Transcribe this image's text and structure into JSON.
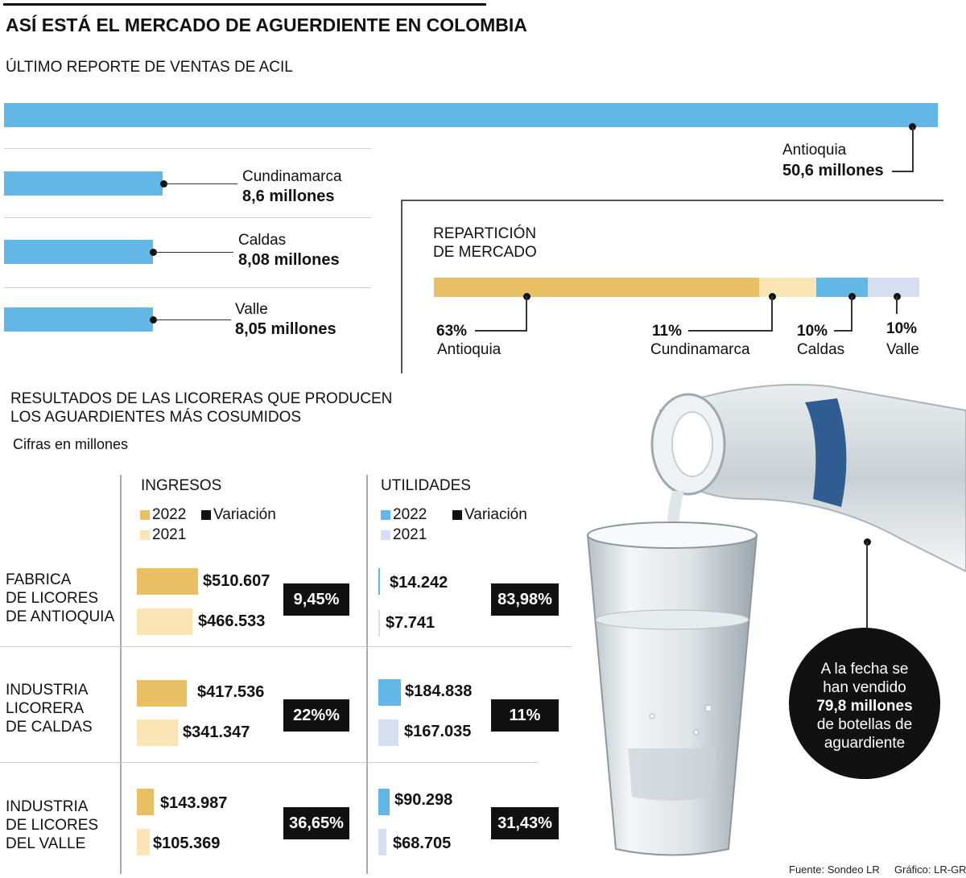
{
  "header": {
    "title": "ASÍ ESTÁ EL MERCADO DE AGUERDIENTE EN COLOMBIA",
    "subtitle": "ÚLTIMO REPORTE DE VENTAS DE ACIL"
  },
  "sales_section": {
    "antioquia": {
      "region": "Antioquia",
      "amount": "50,6 millones"
    },
    "cundinamarca": {
      "region": "Cundinamarca",
      "amount": "8,6 millones"
    },
    "caldas": {
      "region": "Caldas",
      "amount": "8,08 millones"
    },
    "valle": {
      "region": "Valle",
      "amount": "8,05 millones"
    }
  },
  "market_share": {
    "title_line1": "REPARTICIÓN",
    "title_line2": "DE MERCADO",
    "antioquia": {
      "pct": "63%",
      "name": "Antioquia"
    },
    "cundinamarca": {
      "pct": "11%",
      "name": "Cundinamarca"
    },
    "caldas": {
      "pct": "10%",
      "name": "Caldas"
    },
    "valle": {
      "pct": "10%",
      "name": "Valle"
    }
  },
  "results": {
    "title_line1": "RESULTADOS DE LAS LICORERAS QUE PRODUCEN",
    "title_line2": "LOS AGUARDIENTES MÁS COSUMIDOS",
    "units": "Cifras en millones",
    "ingresos_head": "INGRESOS",
    "utilidades_head": "UTILIDADES",
    "legend_2022": "2022",
    "legend_2021": "2021",
    "legend_var": "Variación",
    "rows": [
      {
        "label1": "FABRICA",
        "label2": "DE LICORES",
        "label3": "DE ANTIOQUIA",
        "ing_2022": "$510.607",
        "ing_2021": "$466.533",
        "ing_var": "9,45%",
        "uti_2022": "$14.242",
        "uti_2021": "$7.741",
        "uti_var": "83,98%"
      },
      {
        "label1": "INDUSTRIA",
        "label2": "LICORERA",
        "label3": "DE CALDAS",
        "ing_2022": "$417.536",
        "ing_2021": "$341.347",
        "ing_var": "22%%",
        "uti_2022": "$184.838",
        "uti_2021": "$167.035",
        "uti_var": "11%"
      },
      {
        "label1": "INDUSTRIA",
        "label2": "DE LICORES",
        "label3": "DEL VALLE",
        "ing_2022": "$143.987",
        "ing_2021": "$105.369",
        "ing_var": "36,65%",
        "uti_2022": "$90.298",
        "uti_2021": "$68.705",
        "uti_var": "31,43%"
      }
    ]
  },
  "callout": {
    "line1": "A la fecha se",
    "line2": "han vendido",
    "line3": "79,8 millones",
    "line4": "de botellas de",
    "line5": "aguardiente"
  },
  "footer": {
    "source": "Fuente: Sondeo LR",
    "credit": "Gráfico: LR-GR"
  },
  "colors": {
    "sales_blue": "#62b7e6",
    "gold_2022": "#e8c063",
    "cream_2021": "#fbe5b4",
    "blue_2022": "#62b7e6",
    "lavender_2021": "#d6dff2",
    "black": "#111111"
  },
  "chart_data": [
    {
      "type": "bar",
      "orientation": "horizontal",
      "categories": [
        "Antioquia",
        "Cundinamarca",
        "Caldas",
        "Valle"
      ],
      "values": [
        50.6,
        8.6,
        8.08,
        8.05
      ],
      "units": "millones",
      "xlim": [
        0,
        50.6
      ]
    },
    {
      "type": "bar",
      "stacked": true,
      "categories": [
        "Antioquia",
        "Cundinamarca",
        "Caldas",
        "Valle"
      ],
      "values": [
        63,
        11,
        10,
        10
      ],
      "units": "%"
    },
    {
      "type": "bar",
      "orientation": "horizontal",
      "categories": [
        "FABRICA DE LICORES DE ANTIOQUIA",
        "INDUSTRIA LICORERA DE CALDAS",
        "INDUSTRIA DE LICORES DEL VALLE"
      ],
      "series": [
        {
          "name": "2022",
          "group": "INGRESOS",
          "values": [
            510607,
            417536,
            143987
          ]
        },
        {
          "name": "2021",
          "group": "INGRESOS",
          "values": [
            466533,
            341347,
            105369
          ]
        },
        {
          "name": "2022",
          "group": "UTILIDADES",
          "values": [
            14242,
            184838,
            90298
          ]
        },
        {
          "name": "2021",
          "group": "UTILIDADES",
          "values": [
            7741,
            167035,
            68705
          ]
        }
      ],
      "variation": {
        "INGRESOS": [
          "9,45%",
          "22%%",
          "36,65%"
        ],
        "UTILIDADES": [
          "83,98%",
          "11%",
          "31,43%"
        ]
      }
    }
  ]
}
